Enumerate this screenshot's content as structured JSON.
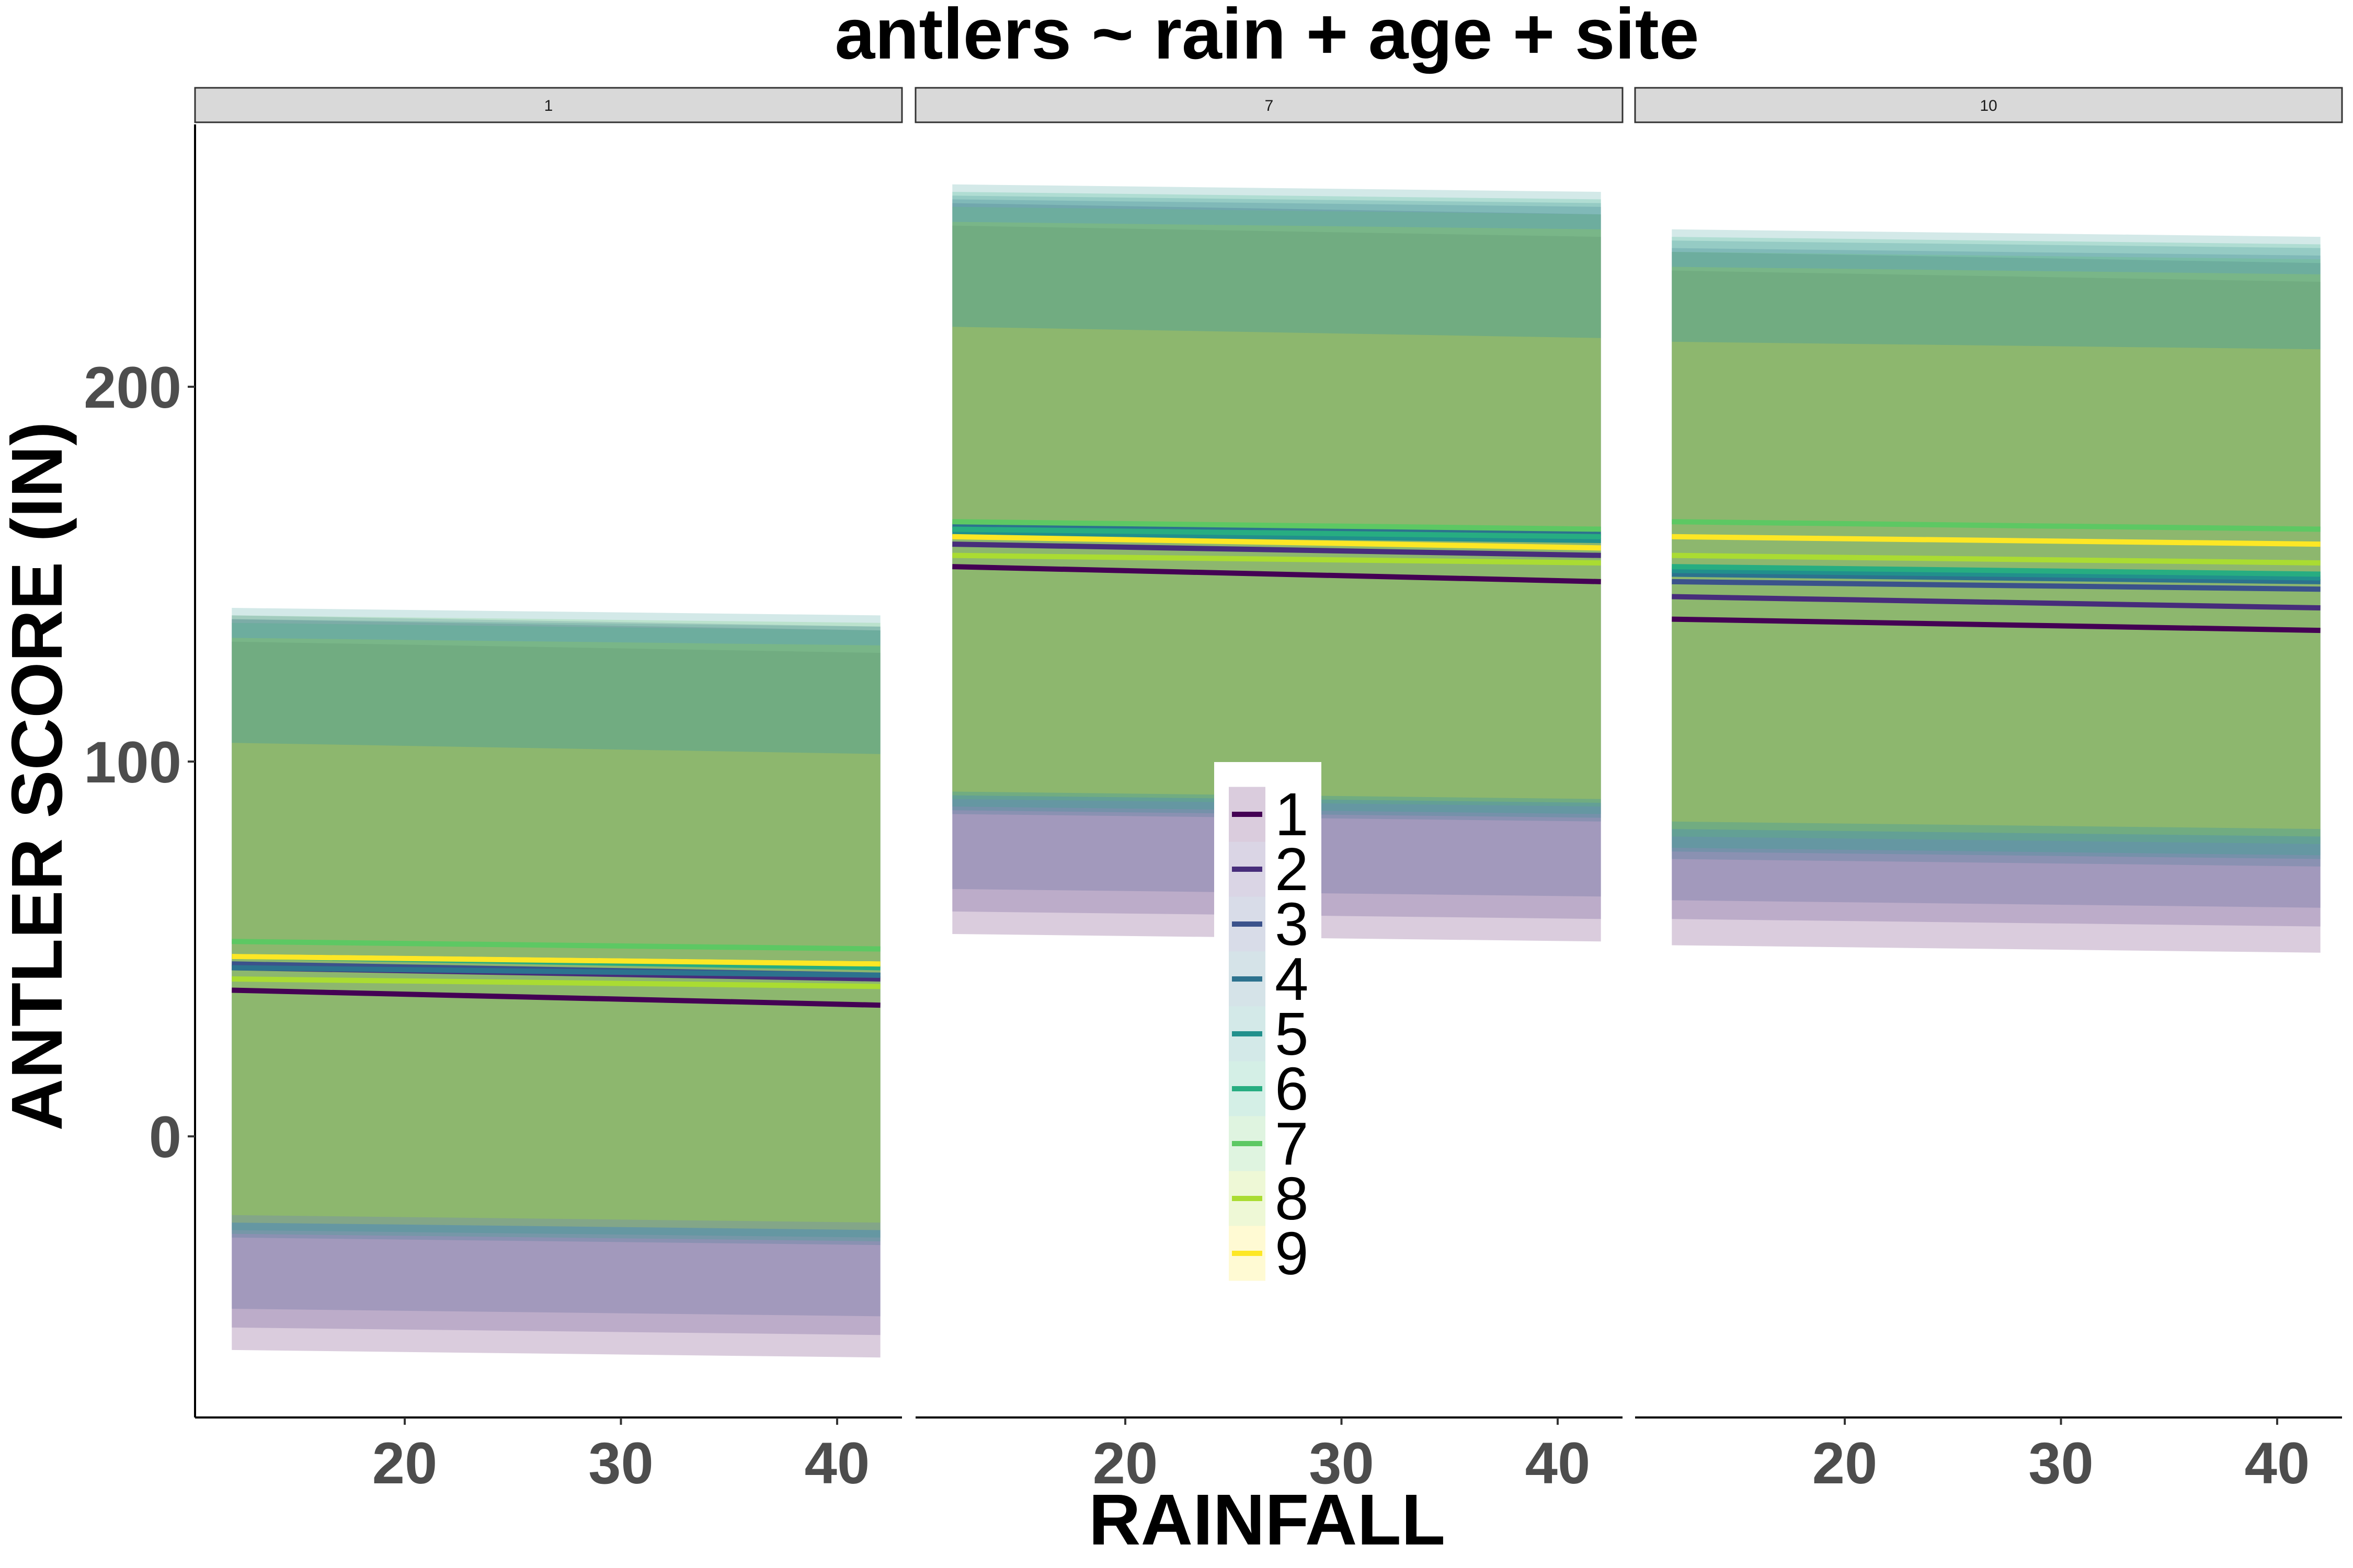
{
  "chart_data": {
    "type": "line",
    "title": "antlers ~ rain + age + site",
    "xlabel": "RAINFALL",
    "ylabel": "ANTLER SCORE (IN)",
    "xlim": [
      10.3,
      43.0
    ],
    "ylim": [
      -75,
      270
    ],
    "x_ticks": [
      "20",
      "30",
      "40"
    ],
    "y_ticks": [
      "0",
      "100",
      "200"
    ],
    "x_tick_values": [
      20,
      30,
      40
    ],
    "y_tick_values": [
      0,
      100,
      200
    ],
    "x_range": [
      12,
      42
    ],
    "grid": false,
    "legend_placement": "center",
    "panels": [
      {
        "strip": "1",
        "series": [
          {
            "name": "1",
            "color": "#440154",
            "line": [
              39,
              35
            ],
            "ribbon_lo": [
              -57,
              -59
            ],
            "ribbon_hi": [
              132,
              129
            ]
          },
          {
            "name": "2",
            "color": "#472D7B",
            "line": [
              45,
              42
            ],
            "ribbon_lo": [
              -51,
              -53
            ],
            "ribbon_hi": [
              138,
              135
            ]
          },
          {
            "name": "3",
            "color": "#3B528B",
            "line": [
              46,
              43
            ],
            "ribbon_lo": [
              -46,
              -48
            ],
            "ribbon_hi": [
              139,
              136
            ]
          },
          {
            "name": "4",
            "color": "#2C728E",
            "line": [
              45,
              43
            ],
            "ribbon_lo": [
              -27,
              -29
            ],
            "ribbon_hi": [
              138,
              136
            ]
          },
          {
            "name": "5",
            "color": "#21908C",
            "line": [
              48,
              46
            ],
            "ribbon_lo": [
              -25,
              -27
            ],
            "ribbon_hi": [
              141,
              139
            ]
          },
          {
            "name": "6",
            "color": "#27AD81",
            "line": [
              48,
              45
            ],
            "ribbon_lo": [
              -26,
              -28
            ],
            "ribbon_hi": [
              137,
              135
            ]
          },
          {
            "name": "7",
            "color": "#5DC863",
            "line": [
              52,
              50
            ],
            "ribbon_lo": [
              -21,
              -23
            ],
            "ribbon_hi": [
              139,
              137
            ]
          },
          {
            "name": "8",
            "color": "#AADC32",
            "line": [
              42,
              40
            ],
            "ribbon_lo": [
              -21,
              -23
            ],
            "ribbon_hi": [
              133,
              131
            ]
          },
          {
            "name": "9",
            "color": "#FDE725",
            "line": [
              48,
              46
            ],
            "ribbon_lo": [
              -23,
              -25
            ],
            "ribbon_hi": [
              105,
              102
            ]
          }
        ]
      },
      {
        "strip": "7",
        "series": [
          {
            "name": "1",
            "color": "#440154",
            "line": [
              152,
              148
            ],
            "ribbon_lo": [
              54,
              52
            ],
            "ribbon_hi": [
              243,
              240
            ]
          },
          {
            "name": "2",
            "color": "#472D7B",
            "line": [
              158,
              155
            ],
            "ribbon_lo": [
              60,
              58
            ],
            "ribbon_hi": [
              249,
              246
            ]
          },
          {
            "name": "3",
            "color": "#3B528B",
            "line": [
              162,
              160
            ],
            "ribbon_lo": [
              66,
              64
            ],
            "ribbon_hi": [
              250,
              248
            ]
          },
          {
            "name": "4",
            "color": "#2C728E",
            "line": [
              163,
              161
            ],
            "ribbon_lo": [
              86,
              84
            ],
            "ribbon_hi": [
              251,
              249
            ]
          },
          {
            "name": "5",
            "color": "#21908C",
            "line": [
              161,
              159
            ],
            "ribbon_lo": [
              87,
              85
            ],
            "ribbon_hi": [
              254,
              252
            ]
          },
          {
            "name": "6",
            "color": "#27AD81",
            "line": [
              162,
              160
            ],
            "ribbon_lo": [
              88,
              86
            ],
            "ribbon_hi": [
              252,
              250
            ]
          },
          {
            "name": "7",
            "color": "#5DC863",
            "line": [
              164,
              162
            ],
            "ribbon_lo": [
              90,
              88
            ],
            "ribbon_hi": [
              248,
              246
            ]
          },
          {
            "name": "8",
            "color": "#AADC32",
            "line": [
              155,
              153
            ],
            "ribbon_lo": [
              91,
              89
            ],
            "ribbon_hi": [
              244,
              242
            ]
          },
          {
            "name": "9",
            "color": "#FDE725",
            "line": [
              160,
              157
            ],
            "ribbon_lo": [
              92,
              90
            ],
            "ribbon_hi": [
              216,
              213
            ]
          }
        ]
      },
      {
        "strip": "10",
        "series": [
          {
            "name": "1",
            "color": "#440154",
            "line": [
              138,
              135
            ],
            "ribbon_lo": [
              51,
              49
            ],
            "ribbon_hi": [
              231,
              228
            ]
          },
          {
            "name": "2",
            "color": "#472D7B",
            "line": [
              144,
              141
            ],
            "ribbon_lo": [
              58,
              56
            ],
            "ribbon_hi": [
              236,
              233
            ]
          },
          {
            "name": "3",
            "color": "#3B528B",
            "line": [
              148,
              146
            ],
            "ribbon_lo": [
              63,
              61
            ],
            "ribbon_hi": [
              237,
              235
            ]
          },
          {
            "name": "4",
            "color": "#2C728E",
            "line": [
              150,
              148
            ],
            "ribbon_lo": [
              74,
              72
            ],
            "ribbon_hi": [
              239,
              237
            ]
          },
          {
            "name": "5",
            "color": "#21908C",
            "line": [
              151,
              149
            ],
            "ribbon_lo": [
              76,
              74
            ],
            "ribbon_hi": [
              242,
              240
            ]
          },
          {
            "name": "6",
            "color": "#27AD81",
            "line": [
              152,
              150
            ],
            "ribbon_lo": [
              77,
              75
            ],
            "ribbon_hi": [
              240,
              238
            ]
          },
          {
            "name": "7",
            "color": "#5DC863",
            "line": [
              164,
              162
            ],
            "ribbon_lo": [
              80,
              78
            ],
            "ribbon_hi": [
              236,
              234
            ]
          },
          {
            "name": "8",
            "color": "#AADC32",
            "line": [
              155,
              153
            ],
            "ribbon_lo": [
              82,
              80
            ],
            "ribbon_hi": [
              232,
              230
            ]
          },
          {
            "name": "9",
            "color": "#FDE725",
            "line": [
              160,
              158
            ],
            "ribbon_lo": [
              84,
              82
            ],
            "ribbon_hi": [
              212,
              210
            ]
          }
        ]
      }
    ],
    "legend": {
      "items": [
        "1",
        "2",
        "3",
        "4",
        "5",
        "6",
        "7",
        "8",
        "9"
      ],
      "colors": [
        "#440154",
        "#472D7B",
        "#3B528B",
        "#2C728E",
        "#21908C",
        "#27AD81",
        "#5DC863",
        "#AADC32",
        "#FDE725"
      ]
    }
  }
}
